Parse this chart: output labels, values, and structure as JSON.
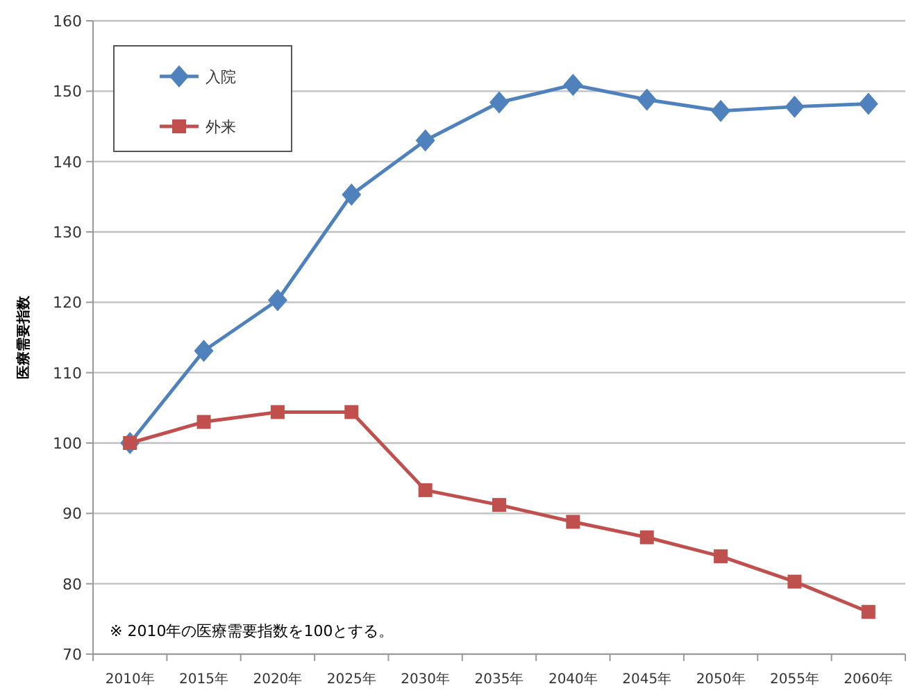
{
  "chart_data": {
    "type": "line",
    "ylabel": "医療需要指数",
    "categories": [
      "2010年",
      "2015年",
      "2020年",
      "2025年",
      "2030年",
      "2035年",
      "2040年",
      "2045年",
      "2050年",
      "2055年",
      "2060年"
    ],
    "series": [
      {
        "name": "入院",
        "color": "#4f81bd",
        "marker": "diamond",
        "values": [
          100,
          113.1,
          120.3,
          135.3,
          143.0,
          148.4,
          150.9,
          148.8,
          147.2,
          147.8,
          148.2
        ]
      },
      {
        "name": "外来",
        "color": "#c0504d",
        "marker": "square",
        "values": [
          100,
          103.0,
          104.4,
          104.4,
          93.3,
          91.2,
          88.8,
          86.6,
          83.9,
          80.3,
          76.0
        ]
      }
    ],
    "ylim": [
      70,
      160
    ],
    "yticks": [
      70,
      80,
      90,
      100,
      110,
      120,
      130,
      140,
      150,
      160
    ],
    "grid": "y",
    "legend": "top left",
    "annotations": [
      "※ 2010年の医療需要指数を100とする。"
    ]
  }
}
